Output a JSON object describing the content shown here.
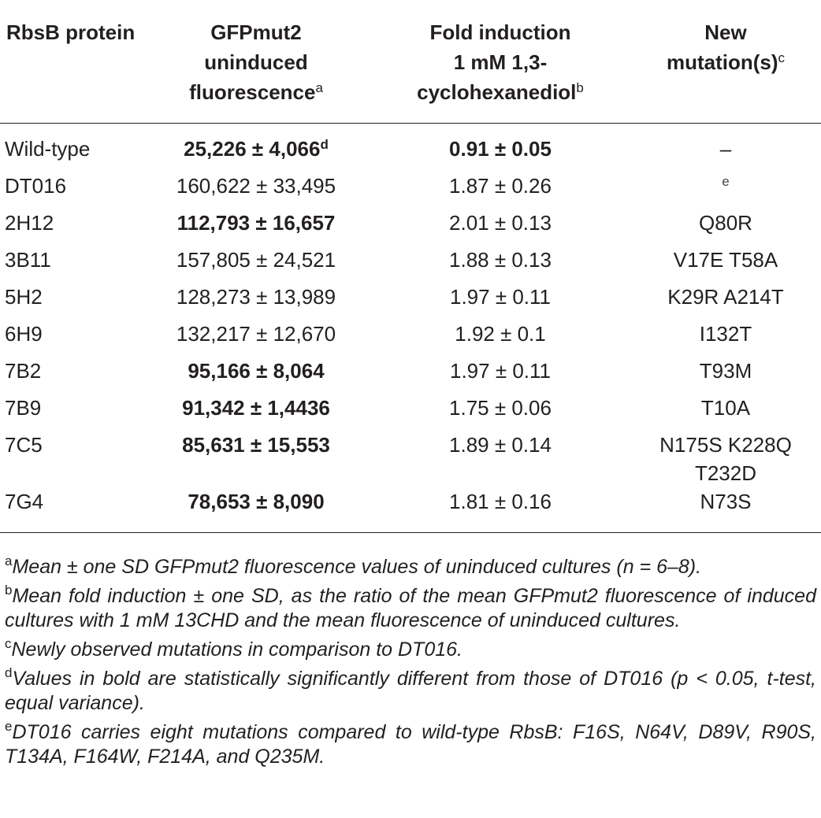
{
  "table": {
    "headers": [
      {
        "lines": [
          "RbsB protein"
        ],
        "sup": ""
      },
      {
        "lines": [
          "GFPmut2",
          "uninduced",
          "fluorescence"
        ],
        "sup": "a"
      },
      {
        "lines": [
          "Fold induction",
          "1 mM 1,3-",
          "cyclohexanediol"
        ],
        "sup": "b"
      },
      {
        "lines": [
          "New",
          "mutation(s)"
        ],
        "sup": "c"
      }
    ],
    "rows": [
      {
        "protein": "Wild-type",
        "fluorescence": "25,226 ± 4,066",
        "fluor_sup": "d",
        "fluor_bold": true,
        "fold": "0.91 ± 0.05",
        "fold_bold": true,
        "mutations": "–",
        "mut_sup": ""
      },
      {
        "protein": "DT016",
        "fluorescence": "160,622 ± 33,495",
        "fluor_sup": "",
        "fluor_bold": false,
        "fold": "1.87 ± 0.26",
        "fold_bold": false,
        "mutations": "",
        "mut_sup": "e"
      },
      {
        "protein": "2H12",
        "fluorescence": "112,793 ± 16,657",
        "fluor_sup": "",
        "fluor_bold": true,
        "fold": "2.01 ± 0.13",
        "fold_bold": false,
        "mutations": "Q80R",
        "mut_sup": ""
      },
      {
        "protein": "3B11",
        "fluorescence": "157,805 ± 24,521",
        "fluor_sup": "",
        "fluor_bold": false,
        "fold": "1.88 ± 0.13",
        "fold_bold": false,
        "mutations": "V17E T58A",
        "mut_sup": ""
      },
      {
        "protein": "5H2",
        "fluorescence": "128,273 ± 13,989",
        "fluor_sup": "",
        "fluor_bold": false,
        "fold": "1.97 ± 0.11",
        "fold_bold": false,
        "mutations": "K29R A214T",
        "mut_sup": ""
      },
      {
        "protein": "6H9",
        "fluorescence": "132,217 ± 12,670",
        "fluor_sup": "",
        "fluor_bold": false,
        "fold": "1.92 ± 0.1",
        "fold_bold": false,
        "mutations": "I132T",
        "mut_sup": ""
      },
      {
        "protein": "7B2",
        "fluorescence": "95,166 ± 8,064",
        "fluor_sup": "",
        "fluor_bold": true,
        "fold": "1.97 ± 0.11",
        "fold_bold": false,
        "mutations": "T93M",
        "mut_sup": ""
      },
      {
        "protein": "7B9",
        "fluorescence": "91,342 ± 1,4436",
        "fluor_sup": "",
        "fluor_bold": true,
        "fold": "1.75 ± 0.06",
        "fold_bold": false,
        "mutations": "T10A",
        "mut_sup": ""
      },
      {
        "protein": "7C5",
        "fluorescence": "85,631 ± 15,553",
        "fluor_sup": "",
        "fluor_bold": true,
        "fold": "1.89 ± 0.14",
        "fold_bold": false,
        "mutations": "N175S K228Q T232D",
        "mut_sup": ""
      },
      {
        "protein": "7G4",
        "fluorescence": "78,653 ± 8,090",
        "fluor_sup": "",
        "fluor_bold": true,
        "fold": "1.81 ± 0.16",
        "fold_bold": false,
        "mutations": "N73S",
        "mut_sup": ""
      }
    ]
  },
  "footnotes": [
    {
      "mark": "a",
      "text": "Mean ± one SD GFPmut2 fluorescence values of uninduced cultures (n = 6–8)."
    },
    {
      "mark": "b",
      "text": "Mean fold induction ± one SD, as the ratio of the mean GFPmut2 fluorescence of induced cultures with 1 mM 13CHD and the mean fluorescence of uninduced cultures."
    },
    {
      "mark": "c",
      "text": "Newly observed mutations in comparison to DT016."
    },
    {
      "mark": "d",
      "text": "Values in bold are statistically significantly different from those of DT016 (p < 0.05, t-test, equal variance)."
    },
    {
      "mark": "e",
      "text": "DT016 carries eight mutations compared to wild-type RbsB: F16S, N64V, D89V, R90S, T134A, F164W, F214A, and Q235M."
    }
  ]
}
